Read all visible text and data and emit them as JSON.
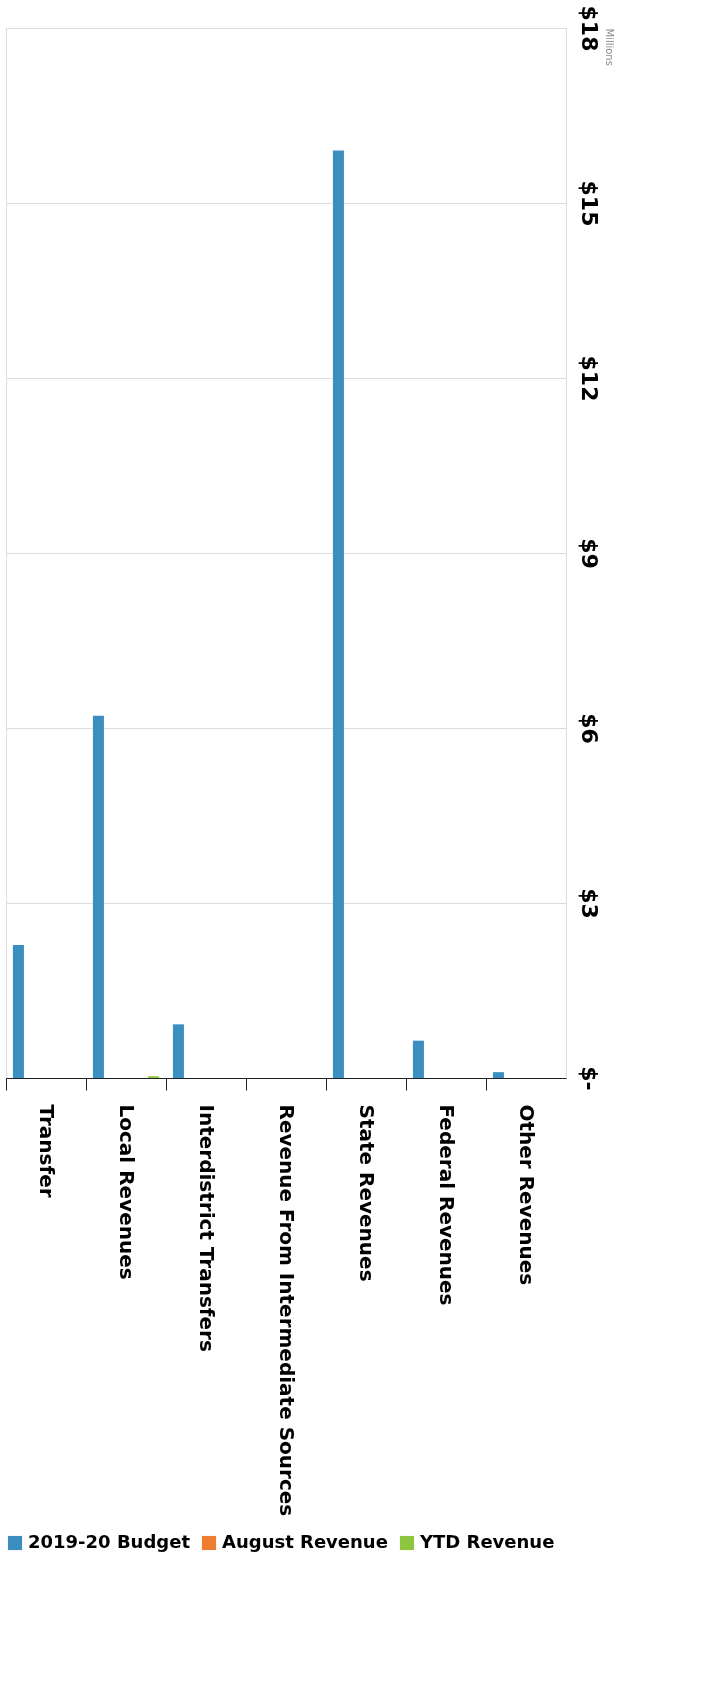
{
  "chart_data": {
    "type": "bar",
    "categories": [
      "Transfer",
      "Local Revenues",
      "Interdistrict Transfers",
      "Revenue From Intermediate Sources",
      "State Revenues",
      "Federal Revenues",
      "Other Revenues"
    ],
    "series": [
      {
        "name": "2019-20 Budget",
        "color": "#3a8fc0",
        "values": [
          2.28,
          6.21,
          0.92,
          0,
          15.9,
          0.64,
          0.1
        ]
      },
      {
        "name": "August Revenue",
        "color": "#ed7d31",
        "values": [
          0,
          0,
          0,
          0,
          0,
          0,
          0
        ]
      },
      {
        "name": "YTD Revenue",
        "color": "#8cc63f",
        "values": [
          0,
          0.03,
          0,
          0,
          0,
          0,
          0
        ]
      }
    ],
    "ylabel": "Millions",
    "ylim": [
      0,
      18
    ],
    "yticks": [
      {
        "value": 0,
        "label": "$-"
      },
      {
        "value": 3,
        "label": "$3"
      },
      {
        "value": 6,
        "label": "$6"
      },
      {
        "value": 9,
        "label": "$9"
      },
      {
        "value": 12,
        "label": "$12"
      },
      {
        "value": 15,
        "label": "$15"
      },
      {
        "value": 18,
        "label": "$18"
      }
    ],
    "grid": "y",
    "legend": "bottom"
  }
}
